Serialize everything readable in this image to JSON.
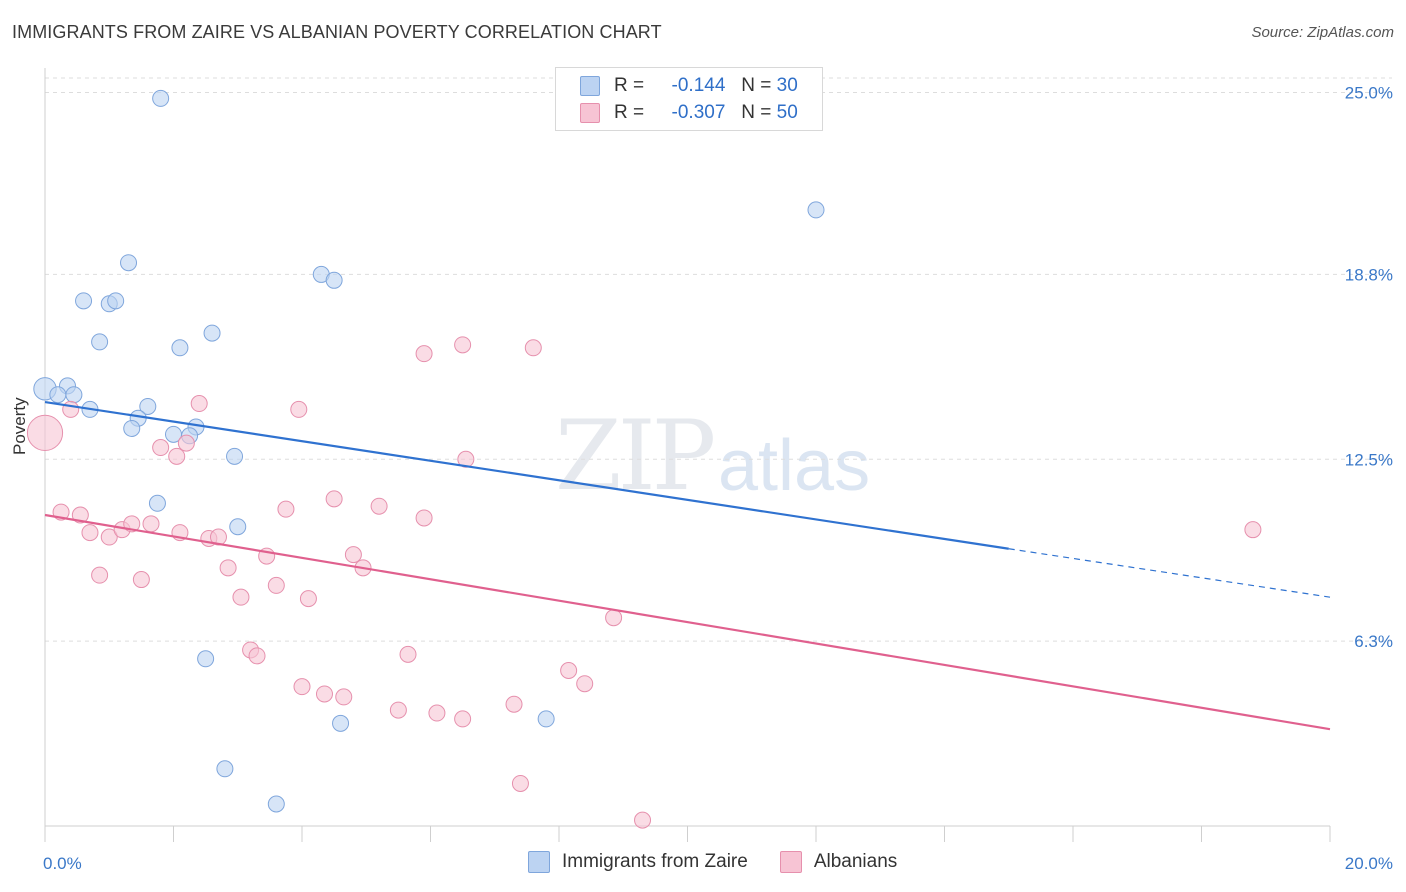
{
  "title": "IMMIGRANTS FROM ZAIRE VS ALBANIAN POVERTY CORRELATION CHART",
  "source": "Source: ZipAtlas.com",
  "watermark": {
    "zip": "ZIP",
    "atlas": "atlas"
  },
  "colors": {
    "blue_fill": "#bcd3f2",
    "blue_stroke": "#7fa6dc",
    "blue_line": "#2f72d0",
    "pink_fill": "#f7c4d4",
    "pink_stroke": "#e690ad",
    "pink_line": "#e0608e",
    "axis_label": "#3a78c8",
    "grid": "#dddddd"
  },
  "legend": {
    "rows": [
      {
        "r_label": "R =",
        "r_value": "-0.144",
        "n_label": "N =",
        "n_value": "30"
      },
      {
        "r_label": "R =",
        "r_value": "-0.307",
        "n_label": "N =",
        "n_value": "50"
      }
    ]
  },
  "chart_data": {
    "type": "scatter",
    "title": "IMMIGRANTS FROM ZAIRE VS ALBANIAN POVERTY CORRELATION CHART",
    "xlabel": "",
    "ylabel": "Poverty",
    "xlim": [
      0,
      20
    ],
    "ylim": [
      0,
      25.7
    ],
    "x_tick_labels": [
      "0.0%",
      "20.0%"
    ],
    "y_ticks": [
      6.3,
      12.5,
      18.8,
      25.0
    ],
    "y_tick_labels": [
      "6.3%",
      "12.5%",
      "18.8%",
      "25.0%"
    ],
    "legend_position": "top-center",
    "series": [
      {
        "name": "Immigrants from Zaire",
        "r": -0.144,
        "n": 30,
        "trend": {
          "x0": 0,
          "y0": 14.45,
          "x1": 15.0,
          "y1": 9.45,
          "dash_x1": 20.0,
          "dash_y1": 7.8
        },
        "points": [
          {
            "x": 1.8,
            "y": 24.8,
            "s": 1
          },
          {
            "x": 12.0,
            "y": 21.0,
            "s": 1
          },
          {
            "x": 1.3,
            "y": 19.2,
            "s": 1
          },
          {
            "x": 4.3,
            "y": 18.8,
            "s": 1
          },
          {
            "x": 4.5,
            "y": 18.6,
            "s": 1
          },
          {
            "x": 0.6,
            "y": 17.9,
            "s": 1
          },
          {
            "x": 1.0,
            "y": 17.8,
            "s": 1
          },
          {
            "x": 1.1,
            "y": 17.9,
            "s": 1
          },
          {
            "x": 2.6,
            "y": 16.8,
            "s": 1
          },
          {
            "x": 0.85,
            "y": 16.5,
            "s": 1
          },
          {
            "x": 2.1,
            "y": 16.3,
            "s": 1
          },
          {
            "x": 0.0,
            "y": 14.9,
            "s": 1.4
          },
          {
            "x": 0.35,
            "y": 15.0,
            "s": 1
          },
          {
            "x": 0.2,
            "y": 14.7,
            "s": 1
          },
          {
            "x": 0.45,
            "y": 14.7,
            "s": 1
          },
          {
            "x": 0.7,
            "y": 14.2,
            "s": 1
          },
          {
            "x": 1.6,
            "y": 14.3,
            "s": 1
          },
          {
            "x": 1.45,
            "y": 13.9,
            "s": 1
          },
          {
            "x": 1.35,
            "y": 13.55,
            "s": 1
          },
          {
            "x": 2.0,
            "y": 13.35,
            "s": 1
          },
          {
            "x": 2.35,
            "y": 13.6,
            "s": 1
          },
          {
            "x": 2.25,
            "y": 13.3,
            "s": 1
          },
          {
            "x": 2.95,
            "y": 12.6,
            "s": 1
          },
          {
            "x": 1.75,
            "y": 11.0,
            "s": 1
          },
          {
            "x": 3.0,
            "y": 10.2,
            "s": 1
          },
          {
            "x": 2.5,
            "y": 5.7,
            "s": 1
          },
          {
            "x": 4.6,
            "y": 3.5,
            "s": 1
          },
          {
            "x": 7.8,
            "y": 3.65,
            "s": 1
          },
          {
            "x": 2.8,
            "y": 1.95,
            "s": 1
          },
          {
            "x": 3.6,
            "y": 0.75,
            "s": 1
          }
        ]
      },
      {
        "name": "Albanians",
        "r": -0.307,
        "n": 50,
        "trend": {
          "x0": 0,
          "y0": 10.6,
          "x1": 20.0,
          "y1": 3.3
        },
        "points": [
          {
            "x": 0.0,
            "y": 13.4,
            "s": 2.2
          },
          {
            "x": 0.4,
            "y": 14.2,
            "s": 1
          },
          {
            "x": 2.4,
            "y": 14.4,
            "s": 1
          },
          {
            "x": 5.9,
            "y": 16.1,
            "s": 1
          },
          {
            "x": 6.5,
            "y": 16.4,
            "s": 1
          },
          {
            "x": 7.6,
            "y": 16.3,
            "s": 1
          },
          {
            "x": 3.95,
            "y": 14.2,
            "s": 1
          },
          {
            "x": 1.8,
            "y": 12.9,
            "s": 1
          },
          {
            "x": 2.05,
            "y": 12.6,
            "s": 1
          },
          {
            "x": 2.2,
            "y": 13.05,
            "s": 1
          },
          {
            "x": 6.55,
            "y": 12.5,
            "s": 1
          },
          {
            "x": 0.25,
            "y": 10.7,
            "s": 1
          },
          {
            "x": 0.55,
            "y": 10.6,
            "s": 1
          },
          {
            "x": 0.7,
            "y": 10.0,
            "s": 1
          },
          {
            "x": 1.0,
            "y": 9.85,
            "s": 1
          },
          {
            "x": 1.2,
            "y": 10.1,
            "s": 1
          },
          {
            "x": 1.35,
            "y": 10.3,
            "s": 1
          },
          {
            "x": 1.65,
            "y": 10.3,
            "s": 1
          },
          {
            "x": 2.1,
            "y": 10.0,
            "s": 1
          },
          {
            "x": 2.55,
            "y": 9.8,
            "s": 1
          },
          {
            "x": 2.7,
            "y": 9.85,
            "s": 1
          },
          {
            "x": 3.75,
            "y": 10.8,
            "s": 1
          },
          {
            "x": 4.5,
            "y": 11.15,
            "s": 1
          },
          {
            "x": 5.2,
            "y": 10.9,
            "s": 1
          },
          {
            "x": 5.9,
            "y": 10.5,
            "s": 1
          },
          {
            "x": 18.8,
            "y": 10.1,
            "s": 1
          },
          {
            "x": 3.45,
            "y": 9.2,
            "s": 1
          },
          {
            "x": 4.8,
            "y": 9.25,
            "s": 1
          },
          {
            "x": 4.95,
            "y": 8.8,
            "s": 1
          },
          {
            "x": 2.85,
            "y": 8.8,
            "s": 1
          },
          {
            "x": 0.85,
            "y": 8.55,
            "s": 1
          },
          {
            "x": 1.5,
            "y": 8.4,
            "s": 1
          },
          {
            "x": 3.6,
            "y": 8.2,
            "s": 1
          },
          {
            "x": 3.05,
            "y": 7.8,
            "s": 1
          },
          {
            "x": 4.1,
            "y": 7.75,
            "s": 1
          },
          {
            "x": 8.85,
            "y": 7.1,
            "s": 1
          },
          {
            "x": 3.2,
            "y": 6.0,
            "s": 1
          },
          {
            "x": 3.3,
            "y": 5.8,
            "s": 1
          },
          {
            "x": 5.65,
            "y": 5.85,
            "s": 1
          },
          {
            "x": 8.15,
            "y": 5.3,
            "s": 1
          },
          {
            "x": 8.4,
            "y": 4.85,
            "s": 1
          },
          {
            "x": 4.0,
            "y": 4.75,
            "s": 1
          },
          {
            "x": 4.35,
            "y": 4.5,
            "s": 1
          },
          {
            "x": 4.65,
            "y": 4.4,
            "s": 1
          },
          {
            "x": 5.5,
            "y": 3.95,
            "s": 1
          },
          {
            "x": 6.1,
            "y": 3.85,
            "s": 1
          },
          {
            "x": 6.5,
            "y": 3.65,
            "s": 1
          },
          {
            "x": 7.3,
            "y": 4.15,
            "s": 1
          },
          {
            "x": 7.4,
            "y": 1.45,
            "s": 1
          },
          {
            "x": 9.3,
            "y": 0.2,
            "s": 1
          }
        ]
      }
    ]
  }
}
